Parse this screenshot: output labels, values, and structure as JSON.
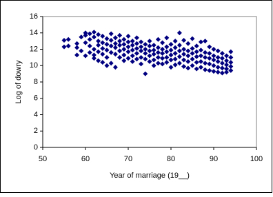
{
  "chart_data": {
    "type": "scatter",
    "x_label": "Year of marriage (19__)",
    "y_label": "Log of dowry",
    "color": "#000080",
    "xlim": [
      50,
      100
    ],
    "xticks": [
      50,
      60,
      70,
      80,
      90,
      100
    ],
    "ylim": [
      0,
      16
    ],
    "yticks": [
      0,
      2,
      4,
      6,
      8,
      10,
      12,
      14,
      16
    ],
    "x": [
      55,
      55,
      56,
      56,
      58,
      58,
      58,
      59,
      59,
      60,
      60,
      60,
      60,
      61,
      61,
      61,
      61,
      62,
      62,
      62,
      62,
      62,
      63,
      63,
      63,
      63,
      63,
      64,
      64,
      64,
      64,
      64,
      65,
      65,
      65,
      65,
      65,
      66,
      66,
      66,
      66,
      66,
      67,
      67,
      67,
      67,
      67,
      68,
      68,
      68,
      68,
      68,
      69,
      69,
      69,
      69,
      69,
      70,
      70,
      70,
      70,
      70,
      71,
      71,
      71,
      71,
      71,
      72,
      72,
      72,
      72,
      72,
      73,
      73,
      73,
      73,
      73,
      74,
      74,
      74,
      74,
      74,
      75,
      75,
      75,
      75,
      75,
      76,
      76,
      76,
      76,
      76,
      77,
      77,
      77,
      77,
      77,
      78,
      78,
      78,
      78,
      78,
      79,
      79,
      79,
      79,
      79,
      80,
      80,
      80,
      80,
      80,
      81,
      81,
      81,
      81,
      81,
      82,
      82,
      82,
      82,
      82,
      83,
      83,
      83,
      83,
      83,
      84,
      84,
      84,
      84,
      84,
      85,
      85,
      85,
      85,
      85,
      86,
      86,
      86,
      86,
      86,
      87,
      87,
      87,
      87,
      87,
      88,
      88,
      88,
      88,
      88,
      89,
      89,
      89,
      89,
      89,
      90,
      90,
      90,
      90,
      90,
      91,
      91,
      91,
      91,
      91,
      92,
      92,
      92,
      92,
      92,
      93,
      93,
      93,
      93,
      93,
      94,
      94,
      94,
      94,
      94
    ],
    "values": [
      12.3,
      13.1,
      13.2,
      12.4,
      11.3,
      12.7,
      12.2,
      13.5,
      11.8,
      14.0,
      13.7,
      12.8,
      11.2,
      13.9,
      13.2,
      12.4,
      11.6,
      14.1,
      13.5,
      12.0,
      11.3,
      10.9,
      13.8,
      13.0,
      12.5,
      11.7,
      10.6,
      13.6,
      12.8,
      12.1,
      11.4,
      10.4,
      13.3,
      12.6,
      11.9,
      11.0,
      10.0,
      13.9,
      13.1,
      12.4,
      11.6,
      10.3,
      13.4,
      12.7,
      12.2,
      11.4,
      9.8,
      13.7,
      13.0,
      12.5,
      11.8,
      11.0,
      13.2,
      12.6,
      12.0,
      11.3,
      10.6,
      13.6,
      12.9,
      12.3,
      11.7,
      10.9,
      13.0,
      12.5,
      11.9,
      11.2,
      10.5,
      13.4,
      12.7,
      12.1,
      11.5,
      10.8,
      12.9,
      12.3,
      11.8,
      11.0,
      10.2,
      12.6,
      12.0,
      11.5,
      10.8,
      9.0,
      13.0,
      12.4,
      11.8,
      11.2,
      10.5,
      12.5,
      11.9,
      11.4,
      10.7,
      10.0,
      13.2,
      12.2,
      11.6,
      11.0,
      10.3,
      12.8,
      12.0,
      11.5,
      10.9,
      10.2,
      13.4,
      12.3,
      11.7,
      11.0,
      10.4,
      12.6,
      11.9,
      11.3,
      10.7,
      9.8,
      13.0,
      12.2,
      11.5,
      10.8,
      10.1,
      14.0,
      12.5,
      11.8,
      11.1,
      10.3,
      13.1,
      12.0,
      11.4,
      10.7,
      9.9,
      12.7,
      11.8,
      11.2,
      10.5,
      9.7,
      13.3,
      12.1,
      11.5,
      10.8,
      10.0,
      12.4,
      11.7,
      11.1,
      10.4,
      9.6,
      12.9,
      11.9,
      11.2,
      10.5,
      9.8,
      13.0,
      11.6,
      11.0,
      10.3,
      9.5,
      12.3,
      11.5,
      10.9,
      10.2,
      9.4,
      12.0,
      11.2,
      10.7,
      10.0,
      9.3,
      11.8,
      11.0,
      10.5,
      9.8,
      9.2,
      11.5,
      10.9,
      10.3,
      9.7,
      9.1,
      11.2,
      10.6,
      10.1,
      9.6,
      9.2,
      11.7,
      11.0,
      10.4,
      9.9,
      9.4
    ]
  }
}
